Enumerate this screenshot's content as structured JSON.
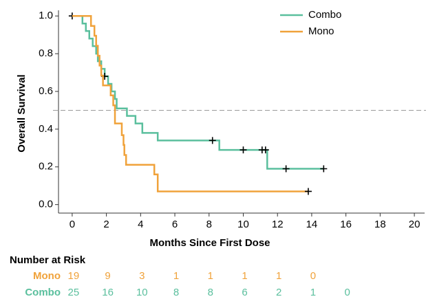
{
  "chart_data": {
    "type": "kaplan-meier",
    "xlabel": "Months Since First Dose",
    "ylabel": "Overall Survival",
    "xlim": [
      -0.8,
      20.6
    ],
    "ylim": [
      -0.045,
      1.03
    ],
    "xticks": [
      0,
      2,
      4,
      6,
      8,
      10,
      12,
      14,
      16,
      18,
      20
    ],
    "yticks": [
      {
        "value": 0,
        "label": "0.0"
      },
      0.2,
      0.4,
      0.6,
      0.8,
      {
        "value": 1,
        "label": "1.0"
      }
    ],
    "reference_line": 0.5,
    "legend": "top-right",
    "series": [
      {
        "name": "Combo",
        "color": "#5abf9d",
        "x": [
          0,
          0.6,
          0.8,
          1.0,
          1.2,
          1.4,
          1.5,
          1.7,
          1.9,
          2.1,
          2.3,
          2.5,
          2.6,
          3.2,
          3.7,
          4.1,
          5.0,
          8.6,
          11.4
        ],
        "values": [
          1.0,
          0.96,
          0.92,
          0.88,
          0.84,
          0.8,
          0.76,
          0.72,
          0.68,
          0.64,
          0.6,
          0.56,
          0.51,
          0.47,
          0.43,
          0.38,
          0.34,
          0.29,
          0.19
        ],
        "censor_x": [
          0,
          1.9,
          8.2,
          10.0,
          11.1,
          11.3,
          12.5,
          14.7
        ],
        "censor_values": [
          1.0,
          0.68,
          0.34,
          0.29,
          0.29,
          0.29,
          0.19,
          0.19
        ]
      },
      {
        "name": "Mono",
        "color": "#f0a23a",
        "x": [
          0,
          1.1,
          1.3,
          1.4,
          1.5,
          1.6,
          1.7,
          1.8,
          2.25,
          2.4,
          2.5,
          2.9,
          3.0,
          3.05,
          3.15,
          4.8,
          5.0
        ],
        "values": [
          1.0,
          0.947,
          0.895,
          0.842,
          0.789,
          0.737,
          0.684,
          0.632,
          0.579,
          0.526,
          0.43,
          0.368,
          0.316,
          0.263,
          0.211,
          0.16,
          0.07
        ],
        "censor_x": [
          13.8
        ],
        "censor_values": [
          0.07
        ]
      }
    ],
    "risk_table": {
      "title": "Number at Risk",
      "rows": [
        {
          "name": "Mono",
          "color": "#f0a23a",
          "counts": [
            19,
            9,
            3,
            1,
            1,
            1,
            1,
            0
          ]
        },
        {
          "name": "Combo",
          "color": "#5abf9d",
          "counts": [
            25,
            16,
            10,
            8,
            8,
            6,
            2,
            1,
            0
          ]
        }
      ]
    }
  }
}
